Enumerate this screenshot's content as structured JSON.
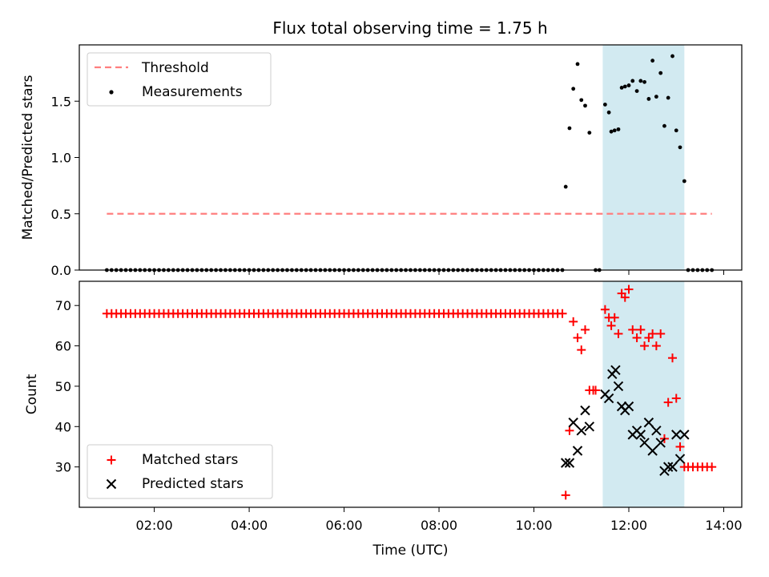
{
  "title": "Flux total observing time = 1.75 h",
  "colors": {
    "threshold": "#ff7f7f",
    "measurement": "#000000",
    "matched": "#ff0000",
    "predicted": "#000000",
    "band": "#add8e6"
  },
  "chart_data": [
    {
      "type": "scatter",
      "panel": "top",
      "ylabel": "Matched/Predicted stars",
      "xlim_hours": [
        0.42,
        14.38
      ],
      "ylim": [
        0,
        2.0
      ],
      "yticks": [
        0.0,
        0.5,
        1.0,
        1.5
      ],
      "ytick_labels": [
        "0.0",
        "0.5",
        "1.0",
        "1.5"
      ],
      "legend": {
        "placement": "top-left",
        "entries": [
          "Threshold",
          "Measurements"
        ]
      },
      "threshold": {
        "name": "Threshold",
        "value": 0.5,
        "x_range_hours": [
          1.0,
          13.75
        ]
      },
      "band_hours": [
        11.45,
        13.17
      ],
      "series": [
        {
          "name": "Measurements",
          "points": [
            [
              1.0,
              0
            ],
            [
              1.1,
              0
            ],
            [
              1.2,
              0
            ],
            [
              1.3,
              0
            ],
            [
              1.4,
              0
            ],
            [
              1.5,
              0
            ],
            [
              1.6,
              0
            ],
            [
              1.7,
              0
            ],
            [
              1.8,
              0
            ],
            [
              1.9,
              0
            ],
            [
              2.0,
              0
            ],
            [
              2.1,
              0
            ],
            [
              2.2,
              0
            ],
            [
              2.3,
              0
            ],
            [
              2.4,
              0
            ],
            [
              2.5,
              0
            ],
            [
              2.6,
              0
            ],
            [
              2.7,
              0
            ],
            [
              2.8,
              0
            ],
            [
              2.9,
              0
            ],
            [
              3.0,
              0
            ],
            [
              3.1,
              0
            ],
            [
              3.2,
              0
            ],
            [
              3.3,
              0
            ],
            [
              3.4,
              0
            ],
            [
              3.5,
              0
            ],
            [
              3.6,
              0
            ],
            [
              3.7,
              0
            ],
            [
              3.8,
              0
            ],
            [
              3.9,
              0
            ],
            [
              4.0,
              0
            ],
            [
              4.1,
              0
            ],
            [
              4.2,
              0
            ],
            [
              4.3,
              0
            ],
            [
              4.4,
              0
            ],
            [
              4.5,
              0
            ],
            [
              4.6,
              0
            ],
            [
              4.7,
              0
            ],
            [
              4.8,
              0
            ],
            [
              4.9,
              0
            ],
            [
              5.0,
              0
            ],
            [
              5.1,
              0
            ],
            [
              5.2,
              0
            ],
            [
              5.3,
              0
            ],
            [
              5.4,
              0
            ],
            [
              5.5,
              0
            ],
            [
              5.6,
              0
            ],
            [
              5.7,
              0
            ],
            [
              5.8,
              0
            ],
            [
              5.9,
              0
            ],
            [
              6.0,
              0
            ],
            [
              6.1,
              0
            ],
            [
              6.2,
              0
            ],
            [
              6.3,
              0
            ],
            [
              6.4,
              0
            ],
            [
              6.5,
              0
            ],
            [
              6.6,
              0
            ],
            [
              6.7,
              0
            ],
            [
              6.8,
              0
            ],
            [
              6.9,
              0
            ],
            [
              7.0,
              0
            ],
            [
              7.1,
              0
            ],
            [
              7.2,
              0
            ],
            [
              7.3,
              0
            ],
            [
              7.4,
              0
            ],
            [
              7.5,
              0
            ],
            [
              7.6,
              0
            ],
            [
              7.7,
              0
            ],
            [
              7.8,
              0
            ],
            [
              7.9,
              0
            ],
            [
              8.0,
              0
            ],
            [
              8.1,
              0
            ],
            [
              8.2,
              0
            ],
            [
              8.3,
              0
            ],
            [
              8.4,
              0
            ],
            [
              8.5,
              0
            ],
            [
              8.6,
              0
            ],
            [
              8.7,
              0
            ],
            [
              8.8,
              0
            ],
            [
              8.9,
              0
            ],
            [
              9.0,
              0
            ],
            [
              9.1,
              0
            ],
            [
              9.2,
              0
            ],
            [
              9.3,
              0
            ],
            [
              9.4,
              0
            ],
            [
              9.5,
              0
            ],
            [
              9.6,
              0
            ],
            [
              9.7,
              0
            ],
            [
              9.8,
              0
            ],
            [
              9.9,
              0
            ],
            [
              10.0,
              0
            ],
            [
              10.1,
              0
            ],
            [
              10.2,
              0
            ],
            [
              10.3,
              0
            ],
            [
              10.4,
              0
            ],
            [
              10.5,
              0
            ],
            [
              10.6,
              0
            ],
            [
              10.67,
              0.74
            ],
            [
              10.75,
              1.26
            ],
            [
              10.83,
              1.61
            ],
            [
              10.92,
              1.83
            ],
            [
              11.0,
              1.51
            ],
            [
              11.08,
              1.46
            ],
            [
              11.17,
              1.22
            ],
            [
              11.3,
              0
            ],
            [
              11.38,
              0
            ],
            [
              11.5,
              1.47
            ],
            [
              11.58,
              1.4
            ],
            [
              11.63,
              1.23
            ],
            [
              11.7,
              1.24
            ],
            [
              11.78,
              1.25
            ],
            [
              11.85,
              1.62
            ],
            [
              11.92,
              1.63
            ],
            [
              12.0,
              1.64
            ],
            [
              12.08,
              1.68
            ],
            [
              12.17,
              1.59
            ],
            [
              12.25,
              1.68
            ],
            [
              12.33,
              1.67
            ],
            [
              12.42,
              1.52
            ],
            [
              12.5,
              1.86
            ],
            [
              12.58,
              1.54
            ],
            [
              12.67,
              1.75
            ],
            [
              12.75,
              1.28
            ],
            [
              12.83,
              1.53
            ],
            [
              12.92,
              1.9
            ],
            [
              13.0,
              1.24
            ],
            [
              13.08,
              1.09
            ],
            [
              13.17,
              0.79
            ],
            [
              13.25,
              0
            ],
            [
              13.35,
              0
            ],
            [
              13.45,
              0
            ],
            [
              13.55,
              0
            ],
            [
              13.65,
              0
            ],
            [
              13.75,
              0
            ]
          ]
        }
      ]
    },
    {
      "type": "scatter",
      "panel": "bottom",
      "xlabel": "Time (UTC)",
      "ylabel": "Count",
      "xlim_hours": [
        0.42,
        14.38
      ],
      "ylim": [
        20,
        76
      ],
      "yticks": [
        30,
        40,
        50,
        60,
        70
      ],
      "ytick_labels": [
        "30",
        "40",
        "50",
        "60",
        "70"
      ],
      "xticks_hours": [
        2,
        4,
        6,
        8,
        10,
        12,
        14
      ],
      "xtick_labels": [
        "02:00",
        "04:00",
        "06:00",
        "08:00",
        "10:00",
        "12:00",
        "14:00"
      ],
      "legend": {
        "placement": "bottom-left",
        "entries": [
          "Matched stars",
          "Predicted stars"
        ]
      },
      "band_hours": [
        11.45,
        13.17
      ],
      "series": [
        {
          "name": "Matched stars",
          "flat_run": {
            "from_hours": 1.0,
            "to_hours": 10.6,
            "step_hours": 0.1,
            "value": 68
          },
          "points": [
            [
              10.67,
              23
            ],
            [
              10.75,
              39
            ],
            [
              10.83,
              66
            ],
            [
              10.92,
              62
            ],
            [
              11.0,
              59
            ],
            [
              11.08,
              64
            ],
            [
              11.17,
              49
            ],
            [
              11.25,
              49
            ],
            [
              11.3,
              49
            ],
            [
              11.5,
              69
            ],
            [
              11.58,
              67
            ],
            [
              11.63,
              65
            ],
            [
              11.7,
              67
            ],
            [
              11.78,
              63
            ],
            [
              11.85,
              73
            ],
            [
              11.92,
              72
            ],
            [
              12.0,
              74
            ],
            [
              12.08,
              64
            ],
            [
              12.17,
              62
            ],
            [
              12.25,
              64
            ],
            [
              12.33,
              60
            ],
            [
              12.42,
              62
            ],
            [
              12.5,
              63
            ],
            [
              12.58,
              60
            ],
            [
              12.67,
              63
            ],
            [
              12.75,
              37
            ],
            [
              12.83,
              46
            ],
            [
              12.92,
              57
            ],
            [
              13.0,
              47
            ],
            [
              13.08,
              35
            ],
            [
              13.17,
              30
            ],
            [
              13.25,
              30
            ],
            [
              13.35,
              30
            ],
            [
              13.45,
              30
            ],
            [
              13.55,
              30
            ],
            [
              13.65,
              30
            ],
            [
              13.75,
              30
            ]
          ]
        },
        {
          "name": "Predicted stars",
          "points": [
            [
              10.67,
              31
            ],
            [
              10.75,
              31
            ],
            [
              10.83,
              41
            ],
            [
              10.92,
              34
            ],
            [
              11.0,
              39
            ],
            [
              11.08,
              44
            ],
            [
              11.17,
              40
            ],
            [
              11.5,
              48
            ],
            [
              11.58,
              47
            ],
            [
              11.65,
              53
            ],
            [
              11.72,
              54
            ],
            [
              11.78,
              50
            ],
            [
              11.85,
              45
            ],
            [
              11.92,
              44
            ],
            [
              12.0,
              45
            ],
            [
              12.08,
              38
            ],
            [
              12.17,
              39
            ],
            [
              12.25,
              38
            ],
            [
              12.33,
              36
            ],
            [
              12.42,
              41
            ],
            [
              12.5,
              34
            ],
            [
              12.58,
              39
            ],
            [
              12.67,
              36
            ],
            [
              12.75,
              29
            ],
            [
              12.83,
              30
            ],
            [
              12.92,
              30
            ],
            [
              13.0,
              38
            ],
            [
              13.08,
              32
            ],
            [
              13.17,
              38
            ]
          ]
        }
      ]
    }
  ]
}
